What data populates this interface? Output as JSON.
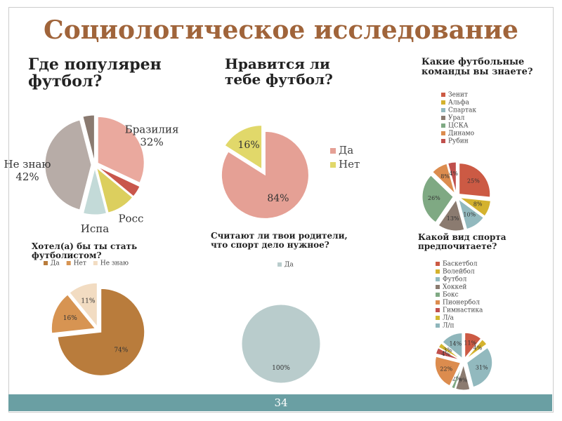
{
  "title": "Социологическое исследование",
  "slide_number": "34",
  "chart_data": [
    {
      "type": "pie",
      "title": "Где популярен футбол?",
      "categories": [
        "Бразилия",
        null,
        "Росс",
        "Испа",
        "Не знаю",
        null
      ],
      "values": [
        32,
        4,
        10,
        8,
        42,
        4
      ],
      "value_labels": [
        "32%",
        null,
        null,
        null,
        "42%",
        null
      ],
      "colors": [
        "#eaa99e",
        "#c9564b",
        "#dccf5e",
        "#c3dad8",
        "#b7aca7",
        "#8a7a70"
      ]
    },
    {
      "type": "pie",
      "title": "Нравится ли тебе футбол?",
      "categories": [
        "Да",
        "Нет"
      ],
      "values": [
        84,
        16
      ],
      "value_labels": [
        "84%",
        "16%"
      ],
      "colors": [
        "#e5a095",
        "#e1d86a"
      ],
      "legend": "right"
    },
    {
      "type": "pie",
      "title": "Какие футбольные команды вы знаете?",
      "categories": [
        "Зенит",
        "Альфа",
        "Спартак",
        "Урал",
        "ЦСКА",
        "Динамо",
        "Рубин"
      ],
      "values": [
        25,
        8,
        10,
        13,
        26,
        8,
        4
      ],
      "value_labels": [
        "25%",
        "8%",
        "10%",
        "13%",
        "26%",
        "8%",
        "4%"
      ],
      "colors": [
        "#cc5a44",
        "#d4b22e",
        "#92b9be",
        "#8b7b70",
        "#7fa983",
        "#dc8c4e",
        "#c0504d"
      ],
      "legend": "right"
    },
    {
      "type": "pie",
      "title": "Хотел(а) бы ты стать футболистом?",
      "categories": [
        "Да",
        "Нет",
        "Не знаю"
      ],
      "values": [
        74,
        16,
        11
      ],
      "value_labels": [
        "74%",
        "16%",
        "11%"
      ],
      "colors": [
        "#b97c3c",
        "#d79452",
        "#f2dcc2"
      ],
      "legend": "top"
    },
    {
      "type": "pie",
      "title": "Считают ли твои родители, что спорт дело нужное?",
      "categories": [
        "Да"
      ],
      "values": [
        100
      ],
      "value_labels": [
        "100%"
      ],
      "colors": [
        "#b9cccc"
      ],
      "legend": "top"
    },
    {
      "type": "pie",
      "title": "Какой вид спорта предпочитаете?",
      "categories": [
        "Баскетбол",
        "Волейбол",
        "Футбол",
        "Хоккей",
        "Бокс",
        "Пионербол",
        "Гимнастика",
        "Л/а",
        "Л/п"
      ],
      "values": [
        11,
        4,
        31,
        9,
        2,
        22,
        4,
        3,
        14
      ],
      "value_labels": [
        "11%",
        "4%",
        "31%",
        "9%",
        "2%",
        "22%",
        "4%",
        "3%",
        "14%"
      ],
      "colors": [
        "#cc5a44",
        "#d4b22e",
        "#92b9be",
        "#8b7b70",
        "#7fa983",
        "#dc8c4e",
        "#c0504d",
        "#d2b830",
        "#8fb6bb"
      ],
      "legend": "right"
    }
  ]
}
